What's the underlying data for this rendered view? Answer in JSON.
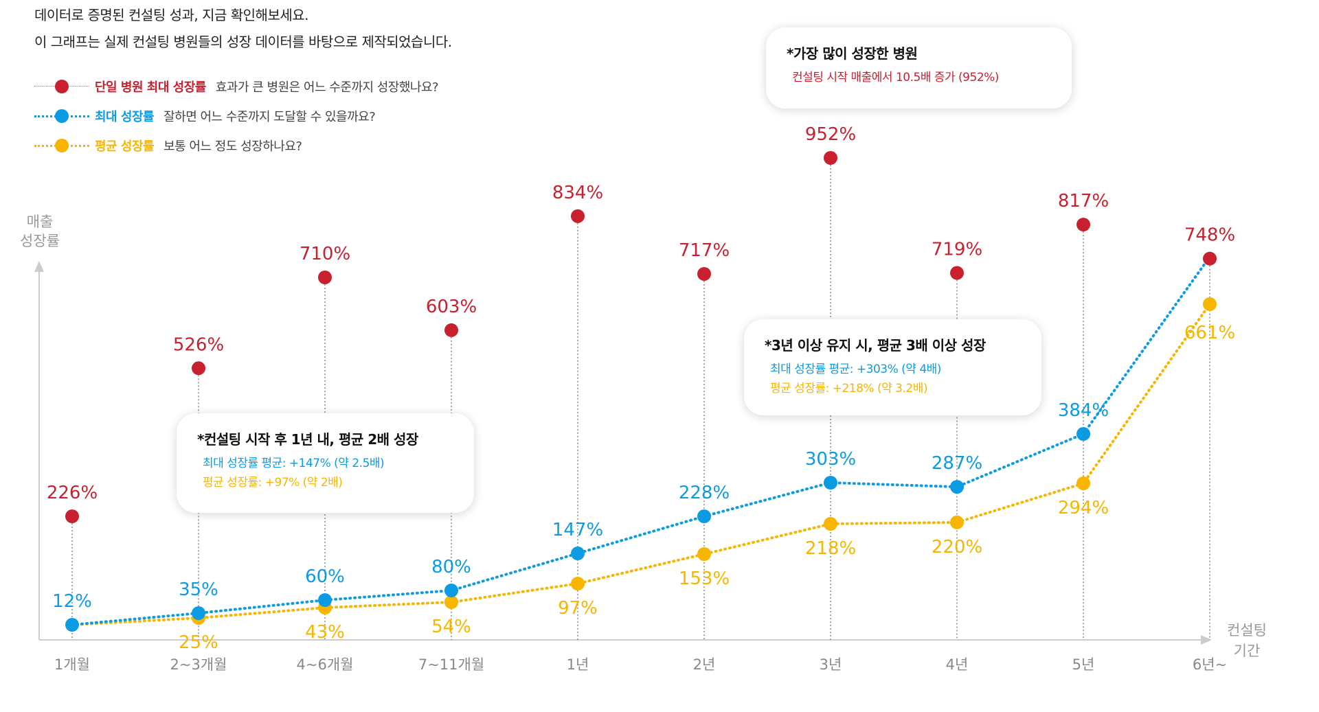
{
  "intro": {
    "line1": "데이터로 증명된 컨설팅 성과, 지금 확인해보세요.",
    "line2": "이 그래프는 실제 컨설팅 병원들의 성장 데이터를 바탕으로 제작되었습니다."
  },
  "legend": [
    {
      "name": "단일 병원 최대 성장률",
      "desc": "효과가 큰 병원은 어느 수준까지 성장했나요?",
      "color": "#c8202f"
    },
    {
      "name": "최대 성장률",
      "desc": "잘하면 어느 수준까지 도달할 수 있을까요?",
      "color": "#0b9be3"
    },
    {
      "name": "평균 성장률",
      "desc": "보통 어느 정도 성장하나요?",
      "color": "#f7b500"
    }
  ],
  "callouts": {
    "top": {
      "title": "*가장 많이 성장한 병원",
      "line1": "컨설팅 시작 매출에서 10.5배 증가 (952%)"
    },
    "mid": {
      "title": "*3년 이상 유지 시, 평균 3배 이상 성장",
      "line1": "최대 성장률 평균: +303% (약 4배)",
      "line2": "평균 성장률: +218% (약 3.2배)"
    },
    "left": {
      "title": "*컨설팅 시작 후 1년 내, 평균 2배 성장",
      "line1": "최대 성장률 평균: +147% (약 2.5배)",
      "line2": "평균 성장률: +97% (약 2배)"
    }
  },
  "chart_data": {
    "type": "line",
    "ylabel": "매출 성장률",
    "xlabel": "컨설팅 기간",
    "categories": [
      "1개월",
      "2~3개월",
      "4~6개월",
      "7~11개월",
      "1년",
      "2년",
      "3년",
      "4년",
      "5년",
      "6년~"
    ],
    "series": [
      {
        "name": "단일 병원 최대 성장률",
        "color": "#c8202f",
        "values": [
          226,
          526,
          710,
          603,
          834,
          717,
          952,
          719,
          817,
          748
        ],
        "labels": [
          "226%",
          "526%",
          "710%",
          "603%",
          "834%",
          "717%",
          "952%",
          "719%",
          "817%",
          "748%"
        ]
      },
      {
        "name": "최대 성장률",
        "color": "#0b9be3",
        "values": [
          12,
          35,
          60,
          80,
          147,
          228,
          303,
          287,
          384,
          748
        ],
        "labels": [
          "12%",
          "35%",
          "60%",
          "80%",
          "147%",
          "228%",
          "303%",
          "287%",
          "384%",
          ""
        ]
      },
      {
        "name": "평균 성장률",
        "color": "#f7b500",
        "values": [
          12,
          25,
          43,
          54,
          97,
          153,
          218,
          220,
          294,
          661
        ],
        "labels": [
          "",
          "25%",
          "43%",
          "54%",
          "97%",
          "153%",
          "218%",
          "220%",
          "294%",
          "661%"
        ]
      }
    ],
    "ylim": [
      0,
      1000
    ],
    "grid": false,
    "legend": "top-left"
  }
}
